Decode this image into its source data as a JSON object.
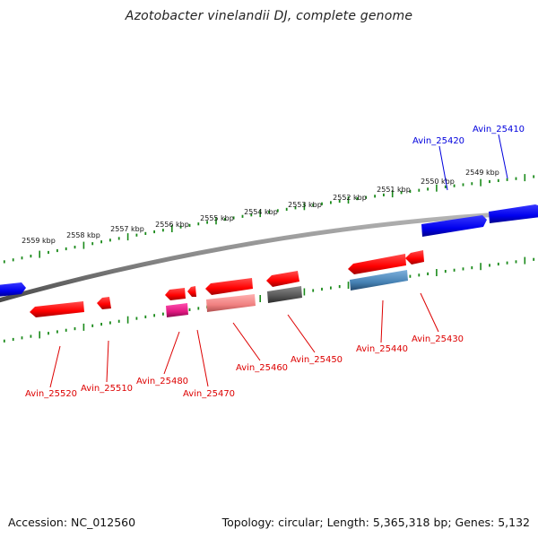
{
  "title": "Azotobacter vinelandii DJ, complete genome",
  "accession": "Accession: NC_012560",
  "summary": "Topology: circular; Length: 5,365,318 bp; Genes: 5,132",
  "colors": {
    "forward_gene": "#0000ee",
    "reverse_gene": "#ff0000",
    "pseudo_gene": "#e8208a",
    "light_red_gene": "#f08080",
    "gray_gene": "#555555",
    "steel_gene": "#4682b4",
    "tick": "#1a8a1a",
    "backbone": "#808080"
  },
  "scale_labels": [
    "2559 kbp",
    "2558 kbp",
    "2557 kbp",
    "2556 kbp",
    "2555 kbp",
    "2554 kbp",
    "2553 kbp",
    "2552 kbp",
    "2551 kbp",
    "2550 kbp",
    "2549 kbp"
  ],
  "gene_labels_top": [
    "Avin_25420",
    "Avin_25410"
  ],
  "gene_labels_bottom": [
    "Avin_25520",
    "Avin_25510",
    "Avin_25480",
    "Avin_25470",
    "Avin_25460",
    "Avin_25450",
    "Avin_25440",
    "Avin_25430"
  ]
}
